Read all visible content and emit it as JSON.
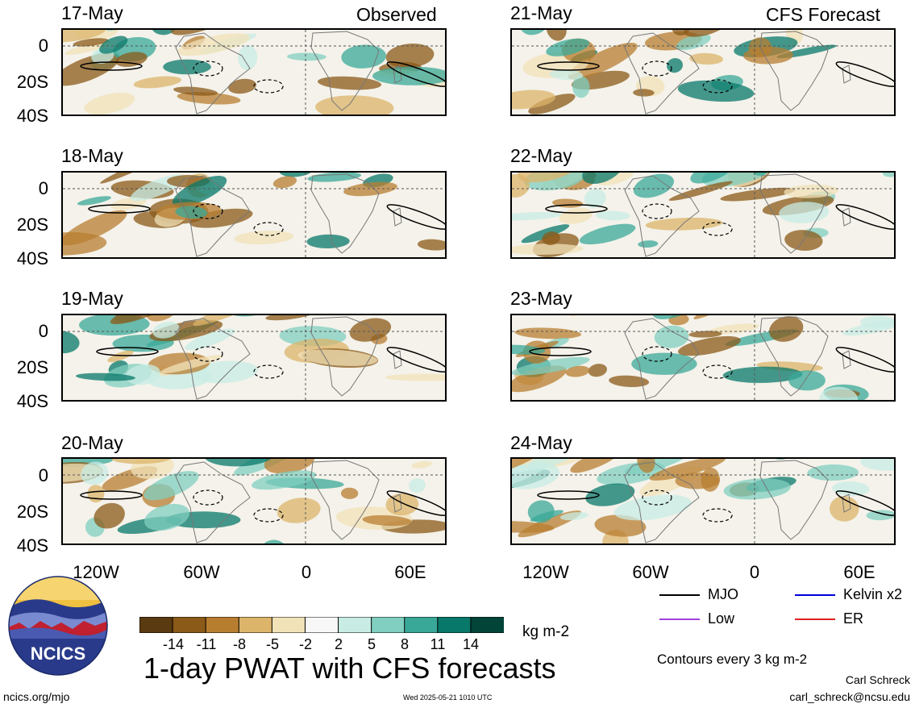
{
  "panels": [
    {
      "date": "17-May",
      "tag": "Observed"
    },
    {
      "date": "18-May",
      "tag": ""
    },
    {
      "date": "19-May",
      "tag": ""
    },
    {
      "date": "20-May",
      "tag": ""
    },
    {
      "date": "21-May",
      "tag": "CFS Forecast"
    },
    {
      "date": "22-May",
      "tag": ""
    },
    {
      "date": "23-May",
      "tag": ""
    },
    {
      "date": "24-May",
      "tag": ""
    }
  ],
  "lat_labels": [
    "0",
    "20S",
    "40S"
  ],
  "lon_labels": [
    "120W",
    "60W",
    "0",
    "60E"
  ],
  "legend": {
    "mjo": "MJO",
    "kelvin": "Kelvin x2",
    "low": "Low",
    "er": "ER",
    "colors": {
      "mjo": "#000000",
      "kelvin": "#0000dd",
      "low": "#a040e0",
      "er": "#e02020"
    }
  },
  "colorbar": {
    "ticks": [
      "-14",
      "-11",
      "-8",
      "-5",
      "-2",
      "2",
      "5",
      "8",
      "11",
      "14"
    ],
    "units": "kg m-2",
    "colors": [
      "#5a3a10",
      "#8b5a18",
      "#b87e30",
      "#dcb46a",
      "#f2e2b8",
      "#f7f7f7",
      "#c8ece4",
      "#80cfc0",
      "#3aa898",
      "#08786a",
      "#024438"
    ]
  },
  "contour_note": "Contours every 3 kg m-2",
  "title": "1-day PWAT with CFS forecasts",
  "footer": {
    "url": "ncics.org/mjo",
    "timestamp": "Wed 2025-05-21 1010 UTC",
    "author": "Carl Schreck",
    "email": "carl_schreck@ncsu.edu",
    "logo_text": "NCICS"
  }
}
